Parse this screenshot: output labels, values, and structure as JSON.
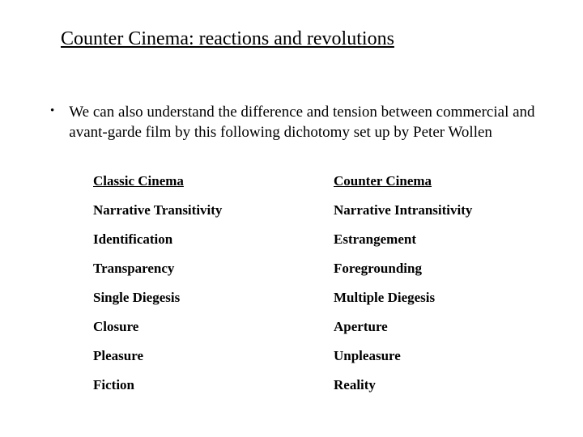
{
  "title": "Counter Cinema: reactions and revolutions",
  "paragraph": "We can also understand the difference and tension between commercial and avant-garde film by this following dichotomy set up by Peter Wollen",
  "table": {
    "headers": {
      "left": "Classic Cinema",
      "right": "Counter Cinema"
    },
    "rows": [
      {
        "left": "Narrative Transitivity",
        "right": "Narrative Intransitivity"
      },
      {
        "left": "Identification",
        "right": "Estrangement"
      },
      {
        "left": "Transparency",
        "right": "Foregrounding"
      },
      {
        "left": "Single Diegesis",
        "right": "Multiple Diegesis"
      },
      {
        "left": "Closure",
        "right": "Aperture"
      },
      {
        "left": "Pleasure",
        "right": "Unpleasure"
      },
      {
        "left": "Fiction",
        "right": "Reality"
      }
    ]
  }
}
